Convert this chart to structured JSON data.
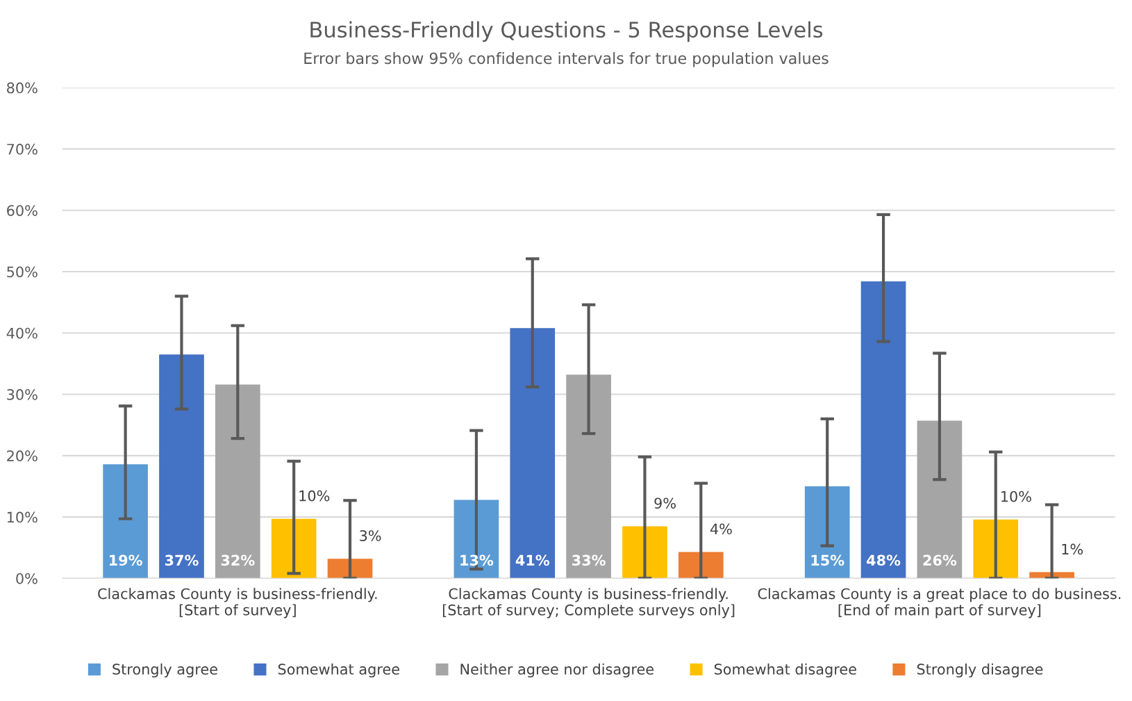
{
  "chart_data": {
    "type": "bar",
    "title": "Business-Friendly Questions - 5 Response Levels",
    "subtitle": "Error bars show 95% confidence intervals for true population values",
    "categories": [
      "Clackamas County is business-friendly.\n[Start of survey]",
      "Clackamas County is business-friendly.\n[Start of survey; Complete surveys only]",
      "Clackamas County is a great place to do business.\n[End of main part of survey]"
    ],
    "series": [
      {
        "name": "Strongly agree",
        "color": "#5b9bd5",
        "values": [
          18.6,
          12.8,
          15.0
        ],
        "errors": [
          [
            9.7,
            28.1
          ],
          [
            1.5,
            24.1
          ],
          [
            5.3,
            26.0
          ]
        ],
        "value_labels": [
          "19%",
          "13%",
          "15%"
        ]
      },
      {
        "name": "Somewhat agree",
        "color": "#4472c4",
        "values": [
          36.5,
          40.8,
          48.4
        ],
        "errors": [
          [
            27.6,
            46.0
          ],
          [
            31.2,
            52.1
          ],
          [
            38.6,
            59.3
          ]
        ],
        "value_labels": [
          "37%",
          "41%",
          "48%"
        ]
      },
      {
        "name": "Neither agree nor disagree",
        "color": "#a5a5a5",
        "values": [
          31.6,
          33.2,
          25.7
        ],
        "errors": [
          [
            22.8,
            41.2
          ],
          [
            23.6,
            44.6
          ],
          [
            16.1,
            36.7
          ]
        ],
        "value_labels": [
          "32%",
          "33%",
          "26%"
        ]
      },
      {
        "name": "Somewhat disagree",
        "color": "#ffc000",
        "values": [
          9.7,
          8.5,
          9.6
        ],
        "errors": [
          [
            0.8,
            19.1
          ],
          [
            0,
            19.8
          ],
          [
            0,
            20.6
          ]
        ],
        "value_labels": [
          "10%",
          "9%",
          "10%"
        ]
      },
      {
        "name": "Strongly disagree",
        "color": "#ed7d31",
        "values": [
          3.2,
          4.3,
          1.0
        ],
        "errors": [
          [
            0,
            12.7
          ],
          [
            0,
            15.5
          ],
          [
            0,
            12.0
          ]
        ],
        "value_labels": [
          "3%",
          "4%",
          "1%"
        ]
      }
    ],
    "ylim": [
      0,
      80
    ],
    "yticks": [
      {
        "value": 0,
        "label": "0%"
      },
      {
        "value": 10,
        "label": "10%"
      },
      {
        "value": 20,
        "label": "20%"
      },
      {
        "value": 30,
        "label": "30%"
      },
      {
        "value": 40,
        "label": "40%"
      },
      {
        "value": 50,
        "label": "50%"
      },
      {
        "value": 60,
        "label": "60%"
      },
      {
        "value": 70,
        "label": "70%"
      },
      {
        "value": 80,
        "label": "80%"
      }
    ],
    "grid": "y",
    "legend": "bottom"
  }
}
